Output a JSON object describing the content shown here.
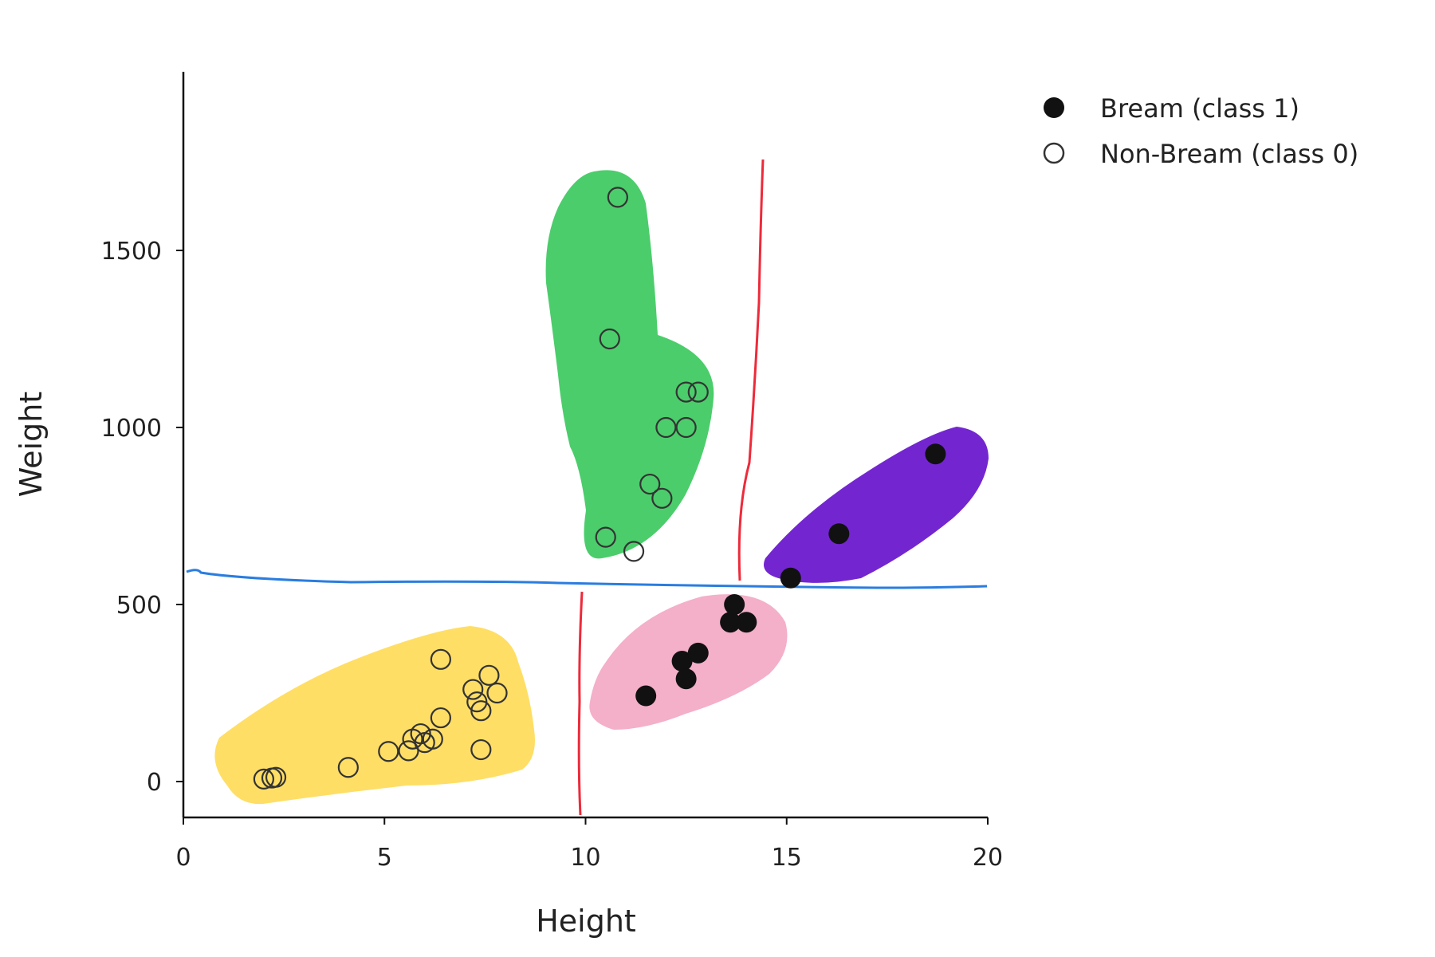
{
  "chart_data": {
    "type": "scatter",
    "xlabel": "Height",
    "ylabel": "Weight",
    "xlim": [
      0,
      20
    ],
    "ylim": [
      -100,
      2000
    ],
    "xticks": [
      0,
      5,
      10,
      15,
      20
    ],
    "yticks": [
      0,
      500,
      1000,
      1500
    ],
    "grid": false,
    "legend_position": "top-right",
    "series": [
      {
        "name": "Bream (class 1)",
        "marker": "filled-circle",
        "color": "#111111",
        "points": [
          [
            11.5,
            242
          ],
          [
            12.4,
            340
          ],
          [
            12.5,
            290
          ],
          [
            12.8,
            363
          ],
          [
            13.6,
            450
          ],
          [
            13.7,
            500
          ],
          [
            14.0,
            450
          ],
          [
            15.1,
            575
          ],
          [
            16.3,
            700
          ],
          [
            18.7,
            925
          ]
        ]
      },
      {
        "name": "Non-Bream (class 0)",
        "marker": "open-circle",
        "color": "#333333",
        "points": [
          [
            2.0,
            7
          ],
          [
            2.2,
            10
          ],
          [
            2.3,
            12
          ],
          [
            4.1,
            40
          ],
          [
            5.1,
            85
          ],
          [
            5.6,
            87
          ],
          [
            5.7,
            120
          ],
          [
            5.9,
            135
          ],
          [
            6.0,
            110
          ],
          [
            6.2,
            120
          ],
          [
            6.4,
            180
          ],
          [
            6.4,
            345
          ],
          [
            7.2,
            260
          ],
          [
            7.3,
            225
          ],
          [
            7.4,
            200
          ],
          [
            7.4,
            90
          ],
          [
            7.6,
            300
          ],
          [
            7.8,
            250
          ],
          [
            10.5,
            690
          ],
          [
            10.6,
            1250
          ],
          [
            10.8,
            1650
          ],
          [
            11.2,
            650
          ],
          [
            11.6,
            840
          ],
          [
            11.9,
            800
          ],
          [
            12.0,
            1000
          ],
          [
            12.5,
            1000
          ],
          [
            12.5,
            1100
          ],
          [
            12.8,
            1100
          ]
        ]
      }
    ],
    "annotations": {
      "blue_line_y": 560,
      "red_lines": [
        {
          "x": 9.9,
          "y_range": [
            -95,
            535
          ]
        },
        {
          "x": 14.0,
          "y_range": [
            570,
            1750
          ]
        }
      ],
      "region_colors": {
        "green": "#2bc451",
        "yellow": "#ffd84a",
        "pink": "#f2a1bf",
        "purple": "#5a00c8",
        "blue_line": "#2a7de0",
        "red_line": "#ee2a3a"
      }
    }
  }
}
